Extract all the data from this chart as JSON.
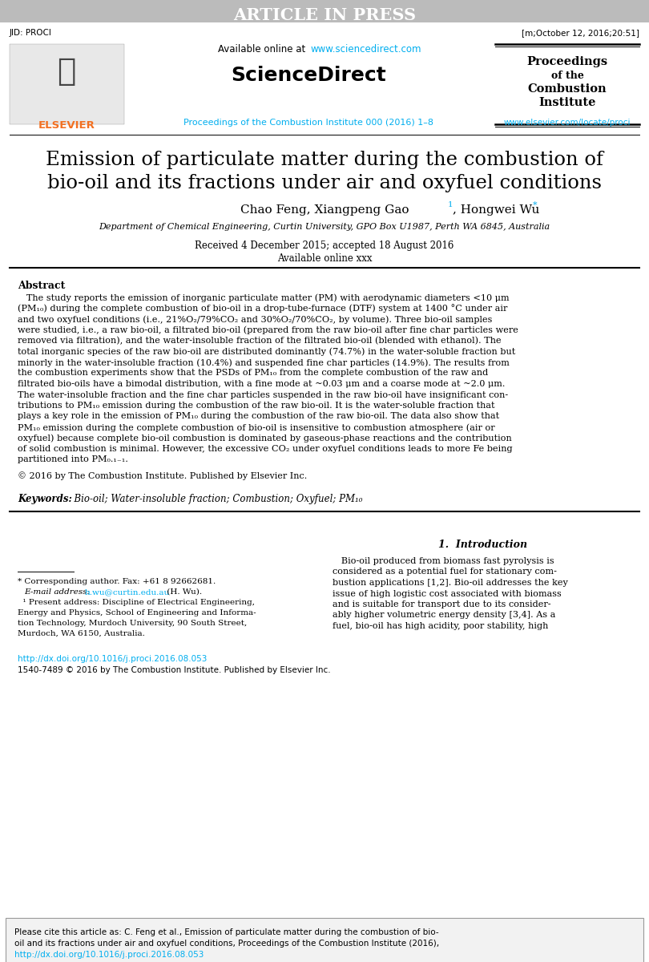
{
  "article_in_press_text": "ARTICLE IN PRESS",
  "article_in_press_bg": "#BBBBBB",
  "jid_text": "JID: PROCI",
  "date_text": "[m;October 12, 2016;20:51]",
  "sciencedirect_text": "ScienceDirect",
  "journal_ref_text": "Proceedings of the Combustion Institute 000 (2016) 1–8",
  "elsevier_url": "www.elsevier.com/locate/proci",
  "paper_title_line1": "Emission of particulate matter during the combustion of",
  "paper_title_line2": "bio-oil and its fractions under air and oxyfuel conditions",
  "affiliation": "Department of Chemical Engineering, Curtin University, GPO Box U1987, Perth WA 6845, Australia",
  "received_text": "Received 4 December 2015; accepted 18 August 2016",
  "available_xxx": "Available online xxx",
  "abstract_heading": "Abstract",
  "copyright_text": "© 2016 by The Combustion Institute. Published by Elsevier Inc.",
  "keywords_label": "Keywords:",
  "keywords_text": "  Bio-oil; Water-insoluble fraction; Combustion; Oxyfuel; PM₁₀",
  "intro_heading": "1.  Introduction",
  "footnote_asterisk": "* Corresponding author. Fax: +61 8 92662681.",
  "footnote_email_label": "E-mail address:",
  "footnote_email": " h.wu@curtin.edu.au",
  "footnote_email_suffix": " (H. Wu).",
  "doi_text": "http://dx.doi.org/10.1016/j.proci.2016.08.053",
  "issn_text": "1540-7489 © 2016 by The Combustion Institute. Published by Elsevier Inc.",
  "cite_line1": "Please cite this article as: C. Feng et al., Emission of particulate matter during the combustion of bio-",
  "cite_line2": "oil and its fractions under air and oxyfuel conditions, Proceedings of the Combustion Institute (2016),",
  "cite_line3": "http://dx.doi.org/10.1016/j.proci.2016.08.053",
  "color_cyan": "#00AEEF",
  "color_orange": "#F37021",
  "color_black": "#000000",
  "bg_color": "#FFFFFF"
}
